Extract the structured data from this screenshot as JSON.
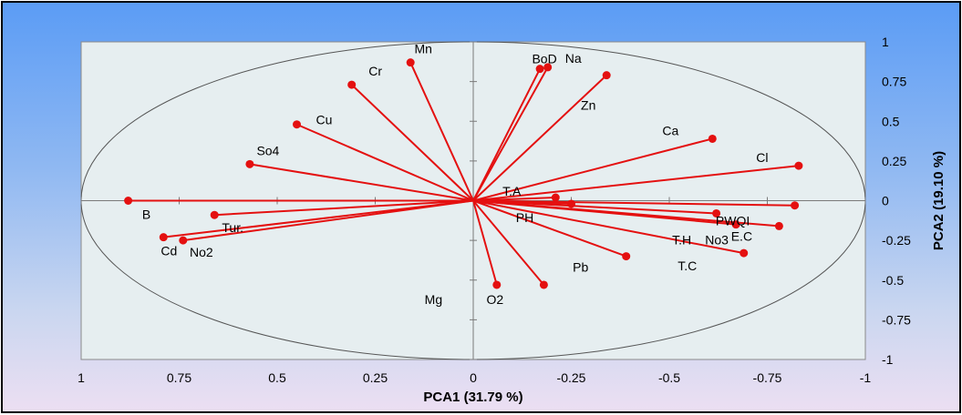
{
  "chart_data": {
    "type": "scatter",
    "title": "",
    "xlabel": "PCA1 (31.79 %)",
    "ylabel": "PCA2 (19.10 %)",
    "xlim": [
      1,
      -1
    ],
    "ylim": [
      -1,
      1
    ],
    "x_ticks": [
      "1",
      "0.75",
      "0.5",
      "0.25",
      "0",
      "-0.25",
      "-0.5",
      "-0.75",
      "-1"
    ],
    "y_ticks": [
      "1",
      "0.75",
      "0.5",
      "0.25",
      "0",
      "-0.25",
      "-0.5",
      "-0.75",
      "-1"
    ],
    "grid": false,
    "unit_circle": true,
    "colors": {
      "vector": "#e41010",
      "plot_bg": "#e6eef0",
      "frame": "#000000"
    },
    "vectors": [
      {
        "label": "Mn",
        "x": 0.16,
        "y": 0.87
      },
      {
        "label": "Na",
        "x": -0.19,
        "y": 0.84
      },
      {
        "label": "BoD",
        "x": -0.17,
        "y": 0.83
      },
      {
        "label": "Cr",
        "x": 0.31,
        "y": 0.73
      },
      {
        "label": "Zn",
        "x": -0.34,
        "y": 0.79
      },
      {
        "label": "Cu",
        "x": 0.45,
        "y": 0.48
      },
      {
        "label": "Ca",
        "x": -0.61,
        "y": 0.39
      },
      {
        "label": "So4",
        "x": 0.57,
        "y": 0.23
      },
      {
        "label": "Cl",
        "x": -0.83,
        "y": 0.22
      },
      {
        "label": "T.A",
        "x": -0.21,
        "y": 0.02
      },
      {
        "label": "B",
        "x": 0.88,
        "y": 0.0
      },
      {
        "label": "PH",
        "x": -0.25,
        "y": -0.02
      },
      {
        "label": "PWQI",
        "x": -0.82,
        "y": -0.03
      },
      {
        "label": "E.C",
        "x": -0.78,
        "y": -0.16
      },
      {
        "label": "Tur.",
        "x": 0.66,
        "y": -0.09
      },
      {
        "label": "T.H",
        "x": -0.62,
        "y": -0.08
      },
      {
        "label": "No3",
        "x": -0.67,
        "y": -0.15
      },
      {
        "label": "Cd",
        "x": 0.79,
        "y": -0.23
      },
      {
        "label": "No2",
        "x": 0.74,
        "y": -0.25
      },
      {
        "label": "T.C",
        "x": -0.69,
        "y": -0.33
      },
      {
        "label": "Pb",
        "x": -0.39,
        "y": -0.35
      },
      {
        "label": "Mg",
        "x": -0.18,
        "y": -0.53
      },
      {
        "label": "O2",
        "x": -0.06,
        "y": -0.53
      }
    ]
  }
}
